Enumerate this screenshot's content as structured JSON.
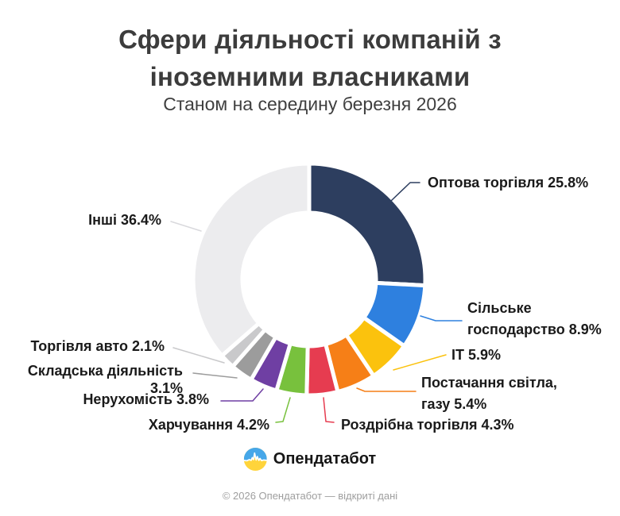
{
  "header": {
    "title_line1": "Сфери діяльності компаній з",
    "title_line2": "іноземними власниками",
    "subtitle": "Станом на середину березня 2026"
  },
  "brand": {
    "name": "Опендатабот"
  },
  "footer": {
    "text": "© 2026 Опендатабот — відкриті дані"
  },
  "colors": {
    "title_text": "#3c3c3c",
    "label_text": "#1a1a1a",
    "footer_text": "#9e9e9e",
    "logo_blue": "#46a7e9",
    "logo_yellow": "#ffd43b",
    "background": "#ffffff"
  },
  "chart_data": {
    "type": "donut",
    "title": "Сфери діяльності компаній з іноземними власниками",
    "subtitle": "Станом на середину березня 2026",
    "start_angle_deg": 0,
    "direction": "clockwise",
    "unit": "%",
    "segments": [
      {
        "name": "Оптова торгівля",
        "value_pct": 25.8,
        "color": "#2d3e5f",
        "label": "Оптова торгівля 25.8%"
      },
      {
        "name": "Сільське господарство",
        "value_pct": 8.9,
        "color": "#2e80df",
        "label": "Сільське\nгосподарство 8.9%"
      },
      {
        "name": "ІТ",
        "value_pct": 5.9,
        "color": "#fbc20d",
        "label": "ІТ 5.9%"
      },
      {
        "name": "Постачання світла, газу",
        "value_pct": 5.4,
        "color": "#f67f17",
        "label": "Постачання світла,\nгазу 5.4%"
      },
      {
        "name": "Роздрібна торгівля",
        "value_pct": 4.3,
        "color": "#e63c50",
        "label": "Роздрібна торгівля 4.3%"
      },
      {
        "name": "Харчування",
        "value_pct": 4.2,
        "color": "#78c13d",
        "label": "Харчування 4.2%"
      },
      {
        "name": "Нерухомість",
        "value_pct": 3.8,
        "color": "#6f3fa3",
        "label": "Нерухомість 3.8%"
      },
      {
        "name": "Складська діяльність",
        "value_pct": 3.1,
        "color": "#9c9c9c",
        "label": "Складська діяльність 3.1%"
      },
      {
        "name": "Торгівля авто",
        "value_pct": 2.1,
        "color": "#c9c9cb",
        "label": "Торгівля авто 2.1%"
      },
      {
        "name": "Інші",
        "value_pct": 36.4,
        "color": "#ececee",
        "leader_color": "#d9d9dd",
        "label": "Інші 36.4%"
      }
    ]
  }
}
